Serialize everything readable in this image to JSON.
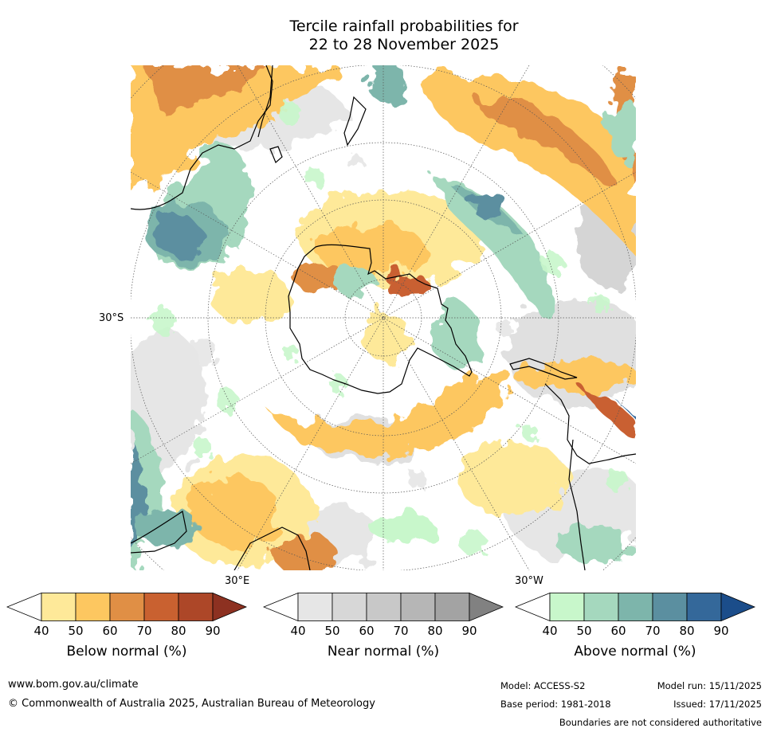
{
  "title": {
    "line1": "Tercile rainfall probabilities for",
    "line2": "22 to 28 November 2025"
  },
  "map": {
    "projection": "south-polar stereographic",
    "lat_label": "30°S",
    "lon_labels": [
      "30°E",
      "30°W"
    ]
  },
  "legends": [
    {
      "name": "Below normal (%)",
      "ticks": [
        "40",
        "50",
        "60",
        "70",
        "80",
        "90"
      ],
      "colors": [
        "#ffffff",
        "#fee999",
        "#fdc760",
        "#e08f45",
        "#c96130",
        "#ad4728",
        "#8d3121"
      ]
    },
    {
      "name": "Near normal (%)",
      "ticks": [
        "40",
        "50",
        "60",
        "70",
        "80",
        "90"
      ],
      "colors": [
        "#ffffff",
        "#e6e6e6",
        "#d7d7d7",
        "#c8c8c8",
        "#b6b6b6",
        "#a3a3a3",
        "#818181"
      ]
    },
    {
      "name": "Above normal (%)",
      "ticks": [
        "40",
        "50",
        "60",
        "70",
        "80",
        "90"
      ],
      "colors": [
        "#ffffff",
        "#c8f7cb",
        "#a5d8be",
        "#7db5ab",
        "#5b8fa0",
        "#34689a",
        "#1b4d8a"
      ]
    }
  ],
  "footer": {
    "website": "www.bom.gov.au/climate",
    "copyright": "© Commonwealth of Australia 2025, Australian Bureau of Meteorology",
    "model": "Model: ACCESS-S2",
    "base_period": "Base period: 1981-2018",
    "model_run": "Model run: 15/11/2025",
    "issued": "Issued: 17/11/2025",
    "disclaimer": "Boundaries are not considered authoritative"
  }
}
